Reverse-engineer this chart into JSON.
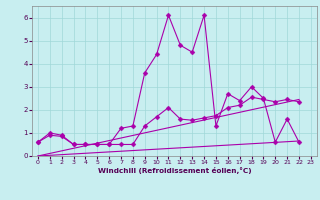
{
  "title": "",
  "xlabel": "Windchill (Refroidissement éolien,°C)",
  "bg_color": "#c8eef0",
  "line_color": "#aa00aa",
  "xlim": [
    -0.5,
    23.5
  ],
  "ylim": [
    0,
    6.5
  ],
  "xticks": [
    0,
    1,
    2,
    3,
    4,
    5,
    6,
    7,
    8,
    9,
    10,
    11,
    12,
    13,
    14,
    15,
    16,
    17,
    18,
    19,
    20,
    21,
    22,
    23
  ],
  "yticks": [
    0,
    1,
    2,
    3,
    4,
    5,
    6
  ],
  "grid_color": "#a0d8d8",
  "series1_x": [
    0,
    1,
    2,
    3,
    4,
    5,
    6,
    7,
    8,
    9,
    10,
    11,
    12,
    13,
    14,
    15,
    16,
    17,
    18,
    19,
    20,
    21,
    22
  ],
  "series1_y": [
    0.6,
    1.0,
    0.9,
    0.5,
    0.5,
    0.5,
    0.5,
    1.2,
    1.3,
    3.6,
    4.4,
    6.1,
    4.8,
    4.5,
    6.1,
    1.3,
    2.7,
    2.4,
    3.0,
    2.5,
    0.6,
    1.6,
    0.6
  ],
  "series2_x": [
    0,
    1,
    2,
    3,
    4,
    5,
    6,
    7,
    8,
    9,
    10,
    11,
    12,
    13,
    14,
    15,
    16,
    17,
    18,
    19,
    20,
    21,
    22
  ],
  "series2_y": [
    0.6,
    0.9,
    0.85,
    0.5,
    0.5,
    0.5,
    0.5,
    0.5,
    0.5,
    1.3,
    1.7,
    2.1,
    1.6,
    1.55,
    1.65,
    1.75,
    2.1,
    2.2,
    2.55,
    2.45,
    2.35,
    2.45,
    2.35
  ],
  "series3_x": [
    0,
    22
  ],
  "series3_y": [
    0.0,
    2.45
  ],
  "series4_x": [
    0,
    22
  ],
  "series4_y": [
    0.0,
    0.65
  ],
  "marker": "D",
  "markersize": 2.5
}
